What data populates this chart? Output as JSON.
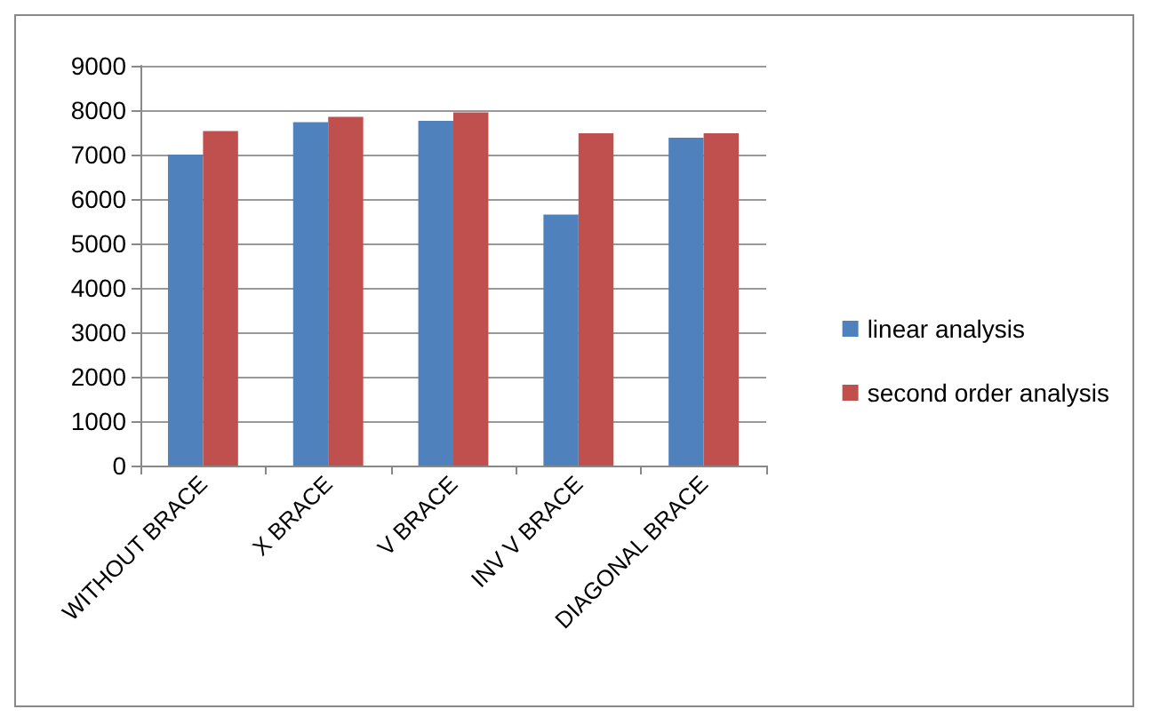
{
  "chart_data": {
    "type": "bar",
    "categories": [
      "WITHOUT BRACE",
      "X BRACE",
      "V BRACE",
      "INV V BRACE",
      "DIAGONAL BRACE"
    ],
    "series": [
      {
        "name": "linear analysis",
        "color": "#4f81bd",
        "values": [
          7000,
          7730,
          7760,
          5650,
          7380
        ]
      },
      {
        "name": "second order analysis",
        "color": "#c0504d",
        "values": [
          7530,
          7850,
          7950,
          7480,
          7480
        ]
      }
    ],
    "ylim": [
      0,
      9000
    ],
    "yticks": [
      0,
      1000,
      2000,
      3000,
      4000,
      5000,
      6000,
      7000,
      8000,
      9000
    ],
    "grid": "y",
    "legend": "right"
  }
}
